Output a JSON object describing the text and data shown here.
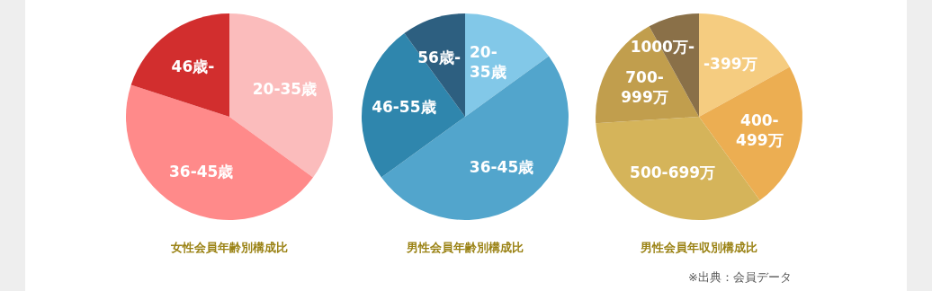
{
  "chart_data": [
    {
      "type": "pie",
      "title": "女性会員年齢別構成比",
      "categories": [
        "20-35歳",
        "36-45歳",
        "46歳-"
      ],
      "values": [
        35,
        45,
        20
      ],
      "colors": [
        "#fbbcbc",
        "#ff8a8a",
        "#d22e2e"
      ]
    },
    {
      "type": "pie",
      "title": "男性会員年齢別構成比",
      "categories": [
        "20-35歳",
        "36-45歳",
        "46-55歳",
        "56歳-"
      ],
      "values": [
        15,
        50,
        25,
        10
      ],
      "colors": [
        "#82c8e8",
        "#52a5cc",
        "#2f86ad",
        "#2d5f80"
      ]
    },
    {
      "type": "pie",
      "title": "男性会員年収別構成比",
      "categories": [
        "-399万",
        "400-499万",
        "500-699万",
        "700-999万",
        "1000万-"
      ],
      "values": [
        17,
        23,
        34,
        18,
        8
      ],
      "colors": [
        "#f5cc80",
        "#ecae52",
        "#d5b45a",
        "#c19e4d",
        "#8a7048"
      ],
      "annotations": [
        "※出典：会員データ"
      ]
    }
  ]
}
